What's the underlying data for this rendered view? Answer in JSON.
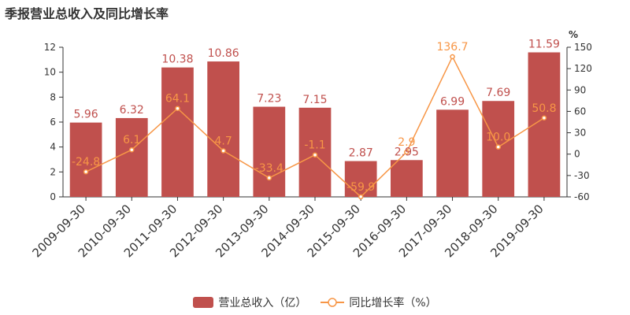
{
  "colors": {
    "bar": "#c0504d",
    "line": "#f79646",
    "axis": "#333333",
    "bar_label": "#c0504d",
    "line_label": "#f79646"
  },
  "chart_data": {
    "type": "bar",
    "title": "季报营业总收入及同比增长率",
    "categories": [
      "2009-09-30",
      "2010-09-30",
      "2011-09-30",
      "2012-09-30",
      "2013-09-30",
      "2014-09-30",
      "2015-09-30",
      "2016-09-30",
      "2017-09-30",
      "2018-09-30",
      "2019-09-30"
    ],
    "series": [
      {
        "name": "营业总收入（亿）",
        "type": "bar",
        "axis": "left",
        "values": [
          5.96,
          6.32,
          10.38,
          10.86,
          7.23,
          7.15,
          2.87,
          2.95,
          6.99,
          7.69,
          11.59
        ],
        "labels": [
          "5.96",
          "6.32",
          "10.38",
          "10.86",
          "7.23",
          "7.15",
          "2.87",
          "2.95",
          "6.99",
          "7.69",
          "11.59"
        ]
      },
      {
        "name": "同比增长率（%）",
        "type": "line",
        "axis": "right",
        "values": [
          -24.8,
          6.1,
          64.1,
          4.7,
          -33.4,
          -1.1,
          -59.9,
          2.9,
          136.7,
          10.0,
          50.8
        ],
        "labels": [
          "-24.8",
          "6.1",
          "64.1",
          "4.7",
          "-33.4",
          "-1.1",
          "-59.9",
          "2.9",
          "136.7",
          "10.0",
          "50.8"
        ]
      }
    ],
    "y_left": {
      "ylim": [
        0,
        12
      ],
      "ticks": [
        0,
        2,
        4,
        6,
        8,
        10,
        12
      ],
      "label": ""
    },
    "y_right": {
      "ylim": [
        -60,
        150
      ],
      "ticks": [
        -60,
        -30,
        0,
        30,
        60,
        90,
        120,
        150
      ],
      "label": "%"
    },
    "grid": false,
    "legend_position": "bottom-center"
  }
}
